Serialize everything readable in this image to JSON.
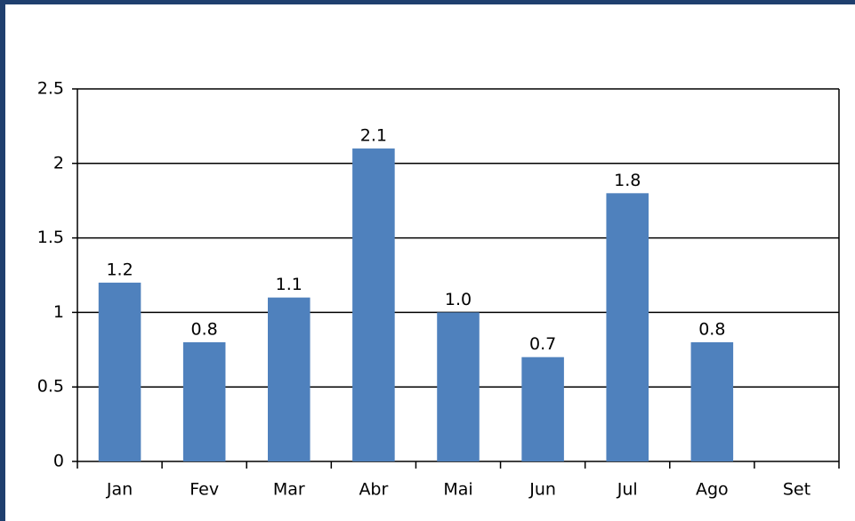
{
  "chart_data": {
    "type": "bar",
    "categories": [
      "Jan",
      "Fev",
      "Mar",
      "Abr",
      "Mai",
      "Jun",
      "Jul",
      "Ago",
      "Set"
    ],
    "values": [
      1.2,
      0.8,
      1.1,
      2.1,
      1.0,
      0.7,
      1.8,
      0.8,
      null
    ],
    "value_labels": [
      "1.2",
      "0.8",
      "1.1",
      "2.1",
      "1.0",
      "0.7",
      "1.8",
      "0.8",
      null
    ],
    "color": "#4f81bd",
    "ylim": [
      0,
      2.5
    ],
    "yticks": [
      0,
      0.5,
      1,
      1.5,
      2,
      2.5
    ],
    "grid": true
  }
}
